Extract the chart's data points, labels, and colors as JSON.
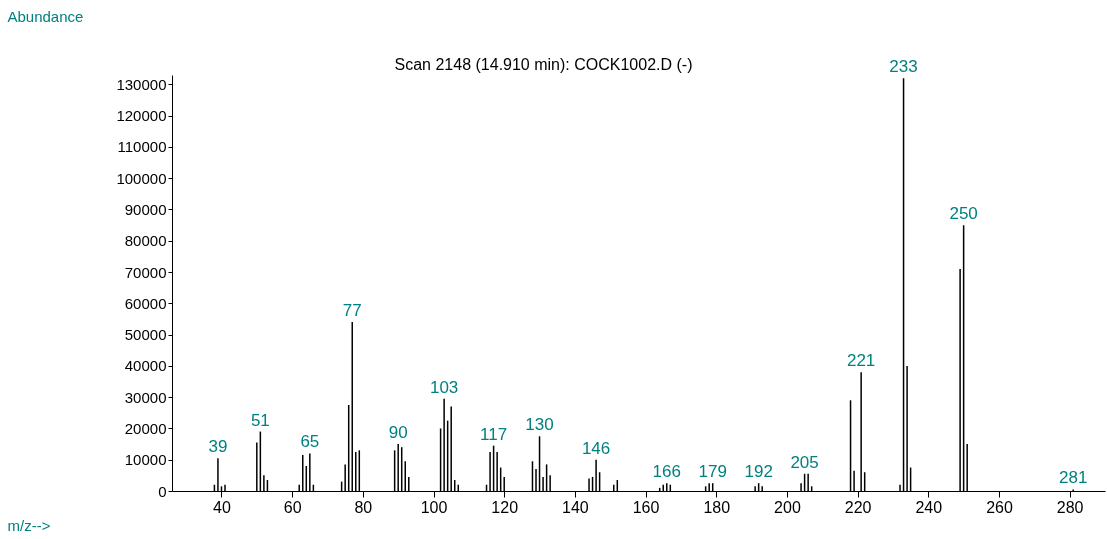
{
  "chart_data": {
    "type": "bar",
    "title": "Scan 2148 (14.910 min): COCK1002.D (-)",
    "xlabel": "m/z-->",
    "ylabel": "Abundance",
    "x": [
      38,
      39,
      40,
      41,
      50,
      51,
      52,
      53,
      62,
      63,
      64,
      65,
      66,
      74,
      75,
      76,
      77,
      78,
      79,
      89,
      90,
      91,
      92,
      93,
      102,
      103,
      104,
      105,
      106,
      107,
      115,
      116,
      117,
      118,
      119,
      120,
      128,
      129,
      130,
      131,
      132,
      133,
      144,
      145,
      146,
      147,
      151,
      152,
      164,
      165,
      166,
      167,
      177,
      178,
      179,
      191,
      192,
      193,
      204,
      205,
      206,
      207,
      218,
      219,
      221,
      222,
      232,
      233,
      234,
      235,
      249,
      250,
      251,
      281
    ],
    "values": [
      2000,
      10500,
      1500,
      2000,
      15500,
      19000,
      5000,
      3500,
      2000,
      11500,
      8000,
      12000,
      2000,
      3000,
      8500,
      27500,
      54000,
      12500,
      13000,
      13000,
      15000,
      14000,
      9500,
      4500,
      20000,
      29500,
      22500,
      27000,
      3500,
      2000,
      2000,
      12500,
      14500,
      12500,
      7500,
      4500,
      9500,
      7000,
      17500,
      4500,
      8500,
      5000,
      4000,
      4500,
      10000,
      6000,
      2000,
      3500,
      1000,
      2000,
      2500,
      2000,
      1500,
      2500,
      2500,
      1500,
      2500,
      1500,
      2500,
      5500,
      5500,
      1500,
      29000,
      6500,
      38000,
      6000,
      2000,
      132000,
      40000,
      7500,
      71000,
      85000,
      15000,
      500
    ],
    "color": "#000000",
    "annotations": [
      {
        "text": "39",
        "x": 39,
        "y": 10500
      },
      {
        "text": "51",
        "x": 51,
        "y": 19000
      },
      {
        "text": "65",
        "x": 65,
        "y": 12000
      },
      {
        "text": "77",
        "x": 77,
        "y": 54000
      },
      {
        "text": "90",
        "x": 90,
        "y": 15000
      },
      {
        "text": "103",
        "x": 103,
        "y": 29500
      },
      {
        "text": "117",
        "x": 117,
        "y": 14500
      },
      {
        "text": "130",
        "x": 130,
        "y": 17500
      },
      {
        "text": "146",
        "x": 146,
        "y": 10000
      },
      {
        "text": "166",
        "x": 166,
        "y": 2500
      },
      {
        "text": "179",
        "x": 179,
        "y": 2500
      },
      {
        "text": "192",
        "x": 192,
        "y": 2500
      },
      {
        "text": "205",
        "x": 205,
        "y": 5500
      },
      {
        "text": "221",
        "x": 221,
        "y": 38000
      },
      {
        "text": "233",
        "x": 233,
        "y": 132000
      },
      {
        "text": "250",
        "x": 250,
        "y": 85000
      },
      {
        "text": "281",
        "x": 281,
        "y": 500
      }
    ],
    "xlim": [
      26,
      290
    ],
    "ylim": [
      0,
      133000
    ],
    "xticks": [
      40,
      60,
      80,
      100,
      120,
      140,
      160,
      180,
      200,
      220,
      240,
      260,
      280
    ],
    "yticks": [
      0,
      10000,
      20000,
      30000,
      40000,
      50000,
      60000,
      70000,
      80000,
      90000,
      100000,
      110000,
      120000,
      130000
    ],
    "grid": false
  }
}
